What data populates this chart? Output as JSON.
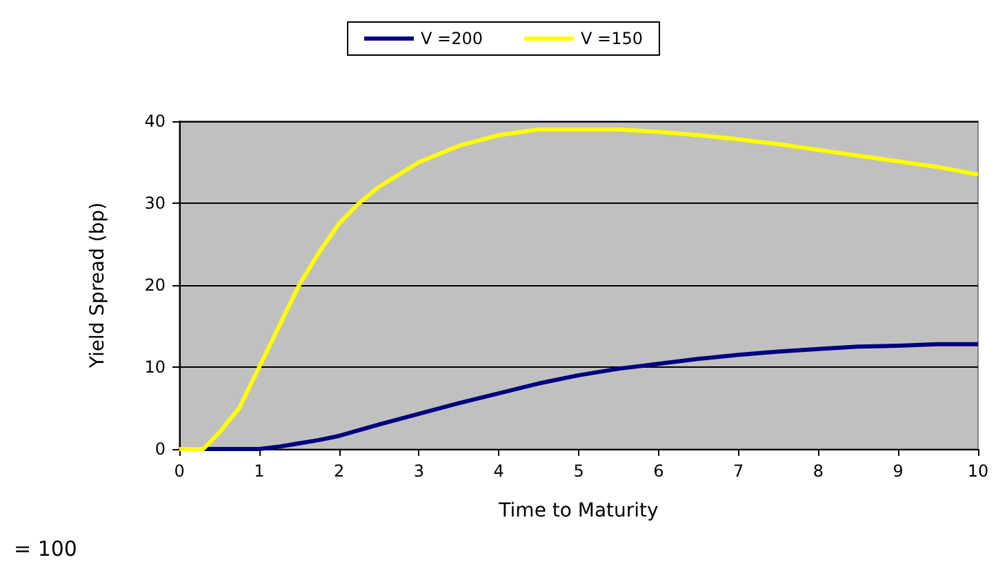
{
  "chart_data": {
    "type": "line",
    "xlabel": "Time to Maturity",
    "ylabel": "Yield Spread (bp)",
    "xlim": [
      0,
      10
    ],
    "xticks": [
      0,
      1,
      2,
      3,
      4,
      5,
      6,
      7,
      8,
      9,
      10
    ],
    "ylim": [
      0,
      40
    ],
    "yticks": [
      0,
      10,
      20,
      30,
      40
    ],
    "grid": "y",
    "legend": "top",
    "marker": "none",
    "line_style": "solid",
    "annotations": [
      "= 100"
    ],
    "series": [
      {
        "name": "V =200",
        "color": "#000080",
        "x": [
          0,
          0.5,
          1,
          1.25,
          1.5,
          1.75,
          2,
          2.5,
          3,
          3.5,
          4,
          4.5,
          5,
          5.5,
          6,
          6.5,
          7,
          7.5,
          8,
          8.5,
          9,
          9.5,
          10
        ],
        "values": [
          0,
          0,
          0,
          0.3,
          0.7,
          1.1,
          1.6,
          3,
          4.3,
          5.6,
          6.8,
          8,
          9,
          9.8,
          10.4,
          11,
          11.5,
          11.9,
          12.2,
          12.5,
          12.6,
          12.8,
          12.8
        ]
      },
      {
        "name": "V =150",
        "color": "#ffff00",
        "x": [
          0,
          0.3,
          0.5,
          0.75,
          1,
          1.25,
          1.5,
          1.75,
          2,
          2.25,
          2.5,
          3,
          3.5,
          4,
          4.5,
          5,
          5.5,
          6,
          6.5,
          7,
          7.5,
          8,
          8.5,
          9,
          9.5,
          10
        ],
        "values": [
          0,
          0,
          2,
          5,
          10,
          15,
          20,
          24,
          27.5,
          30,
          32,
          35,
          37,
          38.3,
          39,
          39,
          39,
          38.7,
          38.3,
          37.8,
          37.2,
          36.5,
          35.8,
          35.1,
          34.4,
          33.5
        ]
      }
    ]
  }
}
